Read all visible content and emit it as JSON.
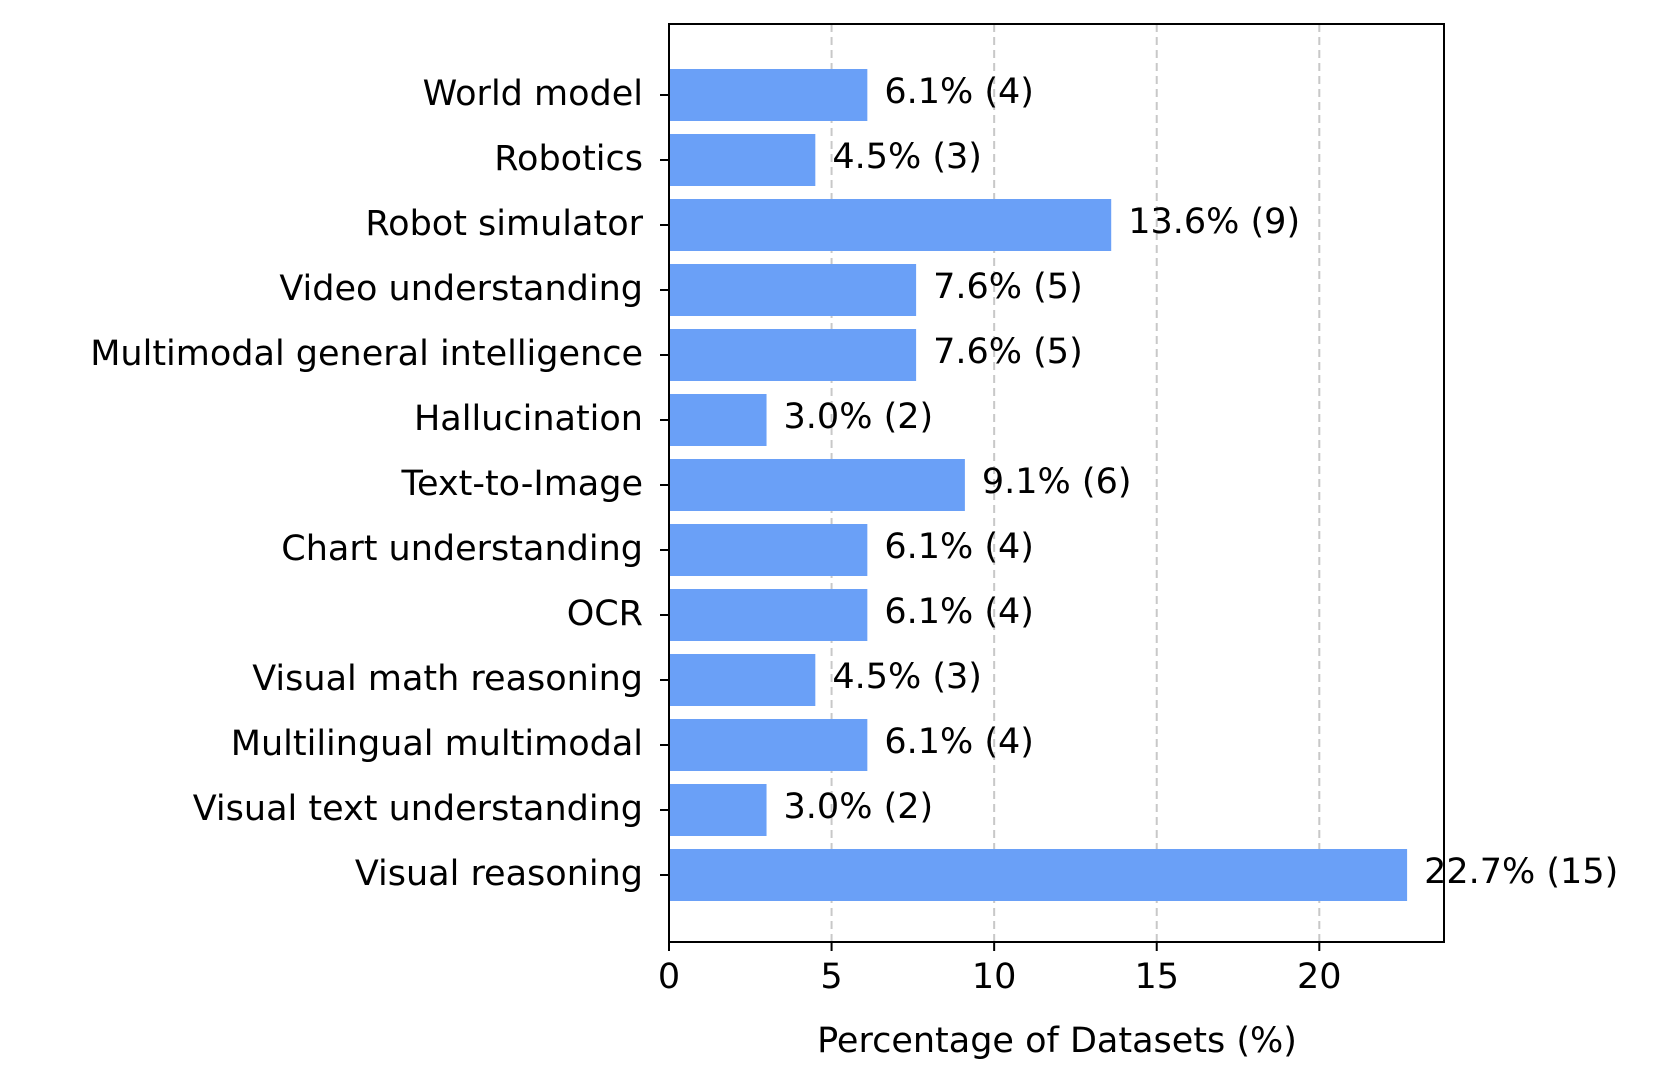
{
  "chart_data": {
    "type": "bar",
    "orientation": "horizontal",
    "categories": [
      "World model",
      "Robotics",
      "Robot simulator",
      "Video understanding",
      "Multimodal general intelligence",
      "Hallucination",
      "Text-to-Image",
      "Chart understanding",
      "OCR",
      "Visual math reasoning",
      "Multilingual multimodal",
      "Visual text understanding",
      "Visual reasoning"
    ],
    "values": [
      6.1,
      4.5,
      13.6,
      7.6,
      7.6,
      3.0,
      9.1,
      6.1,
      6.1,
      4.5,
      6.1,
      3.0,
      22.7
    ],
    "counts": [
      4,
      3,
      9,
      5,
      5,
      2,
      6,
      4,
      4,
      3,
      4,
      2,
      15
    ],
    "data_labels": [
      "6.1% (4)",
      "4.5% (3)",
      "13.6% (9)",
      "7.6% (5)",
      "7.6% (5)",
      "3.0% (2)",
      "9.1% (6)",
      "6.1% (4)",
      "6.1% (4)",
      "4.5% (3)",
      "6.1% (4)",
      "3.0% (2)",
      "22.7% (15)"
    ],
    "title": "",
    "xlabel": "Percentage of Datasets (%)",
    "ylabel": "",
    "xlim": [
      0,
      23.835
    ],
    "xticks": [
      0,
      5,
      10,
      15,
      20
    ],
    "xtick_labels": [
      "0",
      "5",
      "10",
      "15",
      "20"
    ],
    "grid": "x-axis dashed",
    "bar_color": "#6aa0f7",
    "grid_color": "#c8c8c8"
  }
}
